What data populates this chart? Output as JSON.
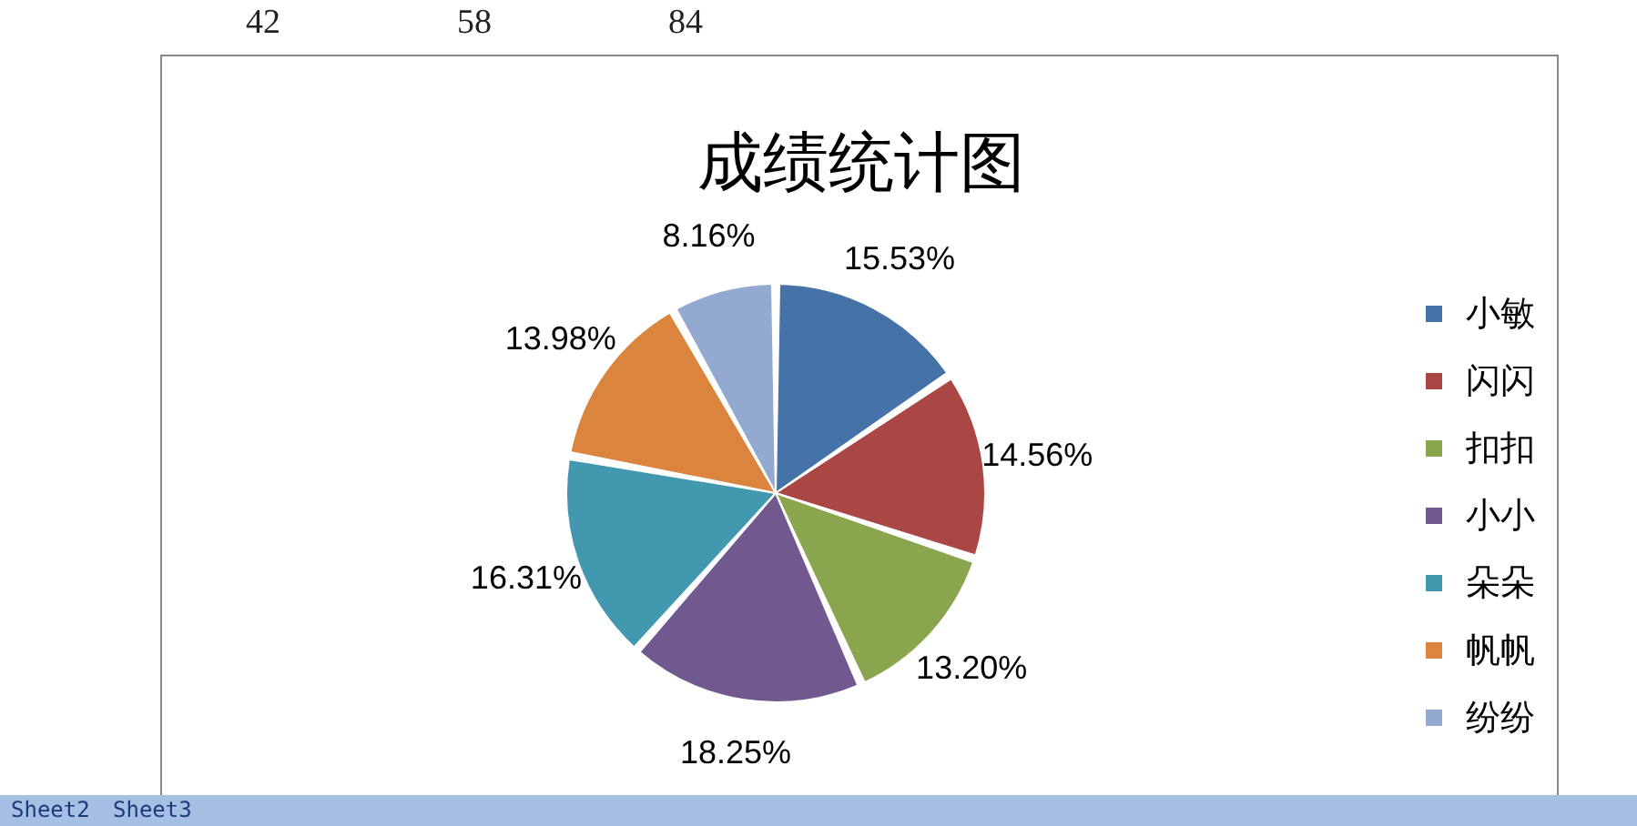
{
  "chart_data": {
    "type": "pie",
    "title": "成绩统计图",
    "categories": [
      "小敏",
      "闪闪",
      "扣扣",
      "小小",
      "朵朵",
      "帆帆",
      "纷纷"
    ],
    "values": [
      15.53,
      14.56,
      13.2,
      18.25,
      16.31,
      13.98,
      8.16
    ],
    "value_labels": [
      "15.53%",
      "14.56%",
      "13.20%",
      "18.25%",
      "16.31%",
      "13.98%",
      "8.16%"
    ],
    "colors": [
      "#4572a7",
      "#aa4643",
      "#89a54e",
      "#71588f",
      "#4198af",
      "#db843d",
      "#93a9cf"
    ],
    "legend": "right",
    "annotations": [
      "42",
      "58",
      "84",
      "Sheet2",
      "Sheet3"
    ]
  }
}
